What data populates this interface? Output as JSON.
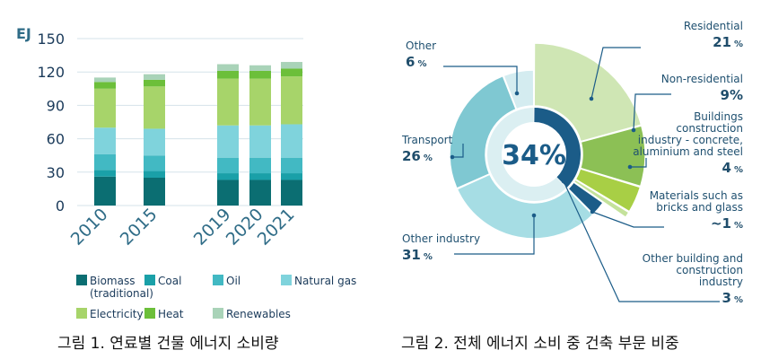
{
  "chart_data": [
    {
      "type": "bar",
      "stacked": true,
      "ylabel": "EJ",
      "ylim": [
        0,
        150
      ],
      "yticks": [
        0,
        30,
        60,
        90,
        120,
        150
      ],
      "grid": true,
      "legend_position": "bottom",
      "categories": [
        "2010",
        "2015",
        "2019",
        "2020",
        "2021"
      ],
      "series": [
        {
          "name": "Biomass (traditional)",
          "color": "#0b6e72",
          "values": [
            26,
            25,
            23,
            23,
            23
          ]
        },
        {
          "name": "Coal",
          "color": "#1aa0a8",
          "values": [
            6,
            6,
            6,
            6,
            6
          ]
        },
        {
          "name": "Oil",
          "color": "#42b9c3",
          "values": [
            14,
            14,
            14,
            14,
            14
          ]
        },
        {
          "name": "Natural gas",
          "color": "#7fd3dc",
          "values": [
            24,
            24,
            29,
            29,
            30
          ]
        },
        {
          "name": "Electricity",
          "color": "#a7d46a",
          "values": [
            35,
            38,
            42,
            42,
            43
          ]
        },
        {
          "name": "Heat",
          "color": "#6cbf3a",
          "values": [
            6,
            6,
            7,
            7,
            7
          ]
        },
        {
          "name": "Renewables",
          "color": "#a9d3b8",
          "values": [
            4,
            5,
            6,
            5,
            6
          ]
        }
      ]
    },
    {
      "type": "pie",
      "center_label": "34%",
      "slices": [
        {
          "name": "Residential",
          "pct_label": "21",
          "value": 21,
          "color": "#cfe6b4",
          "outer": true
        },
        {
          "name": "Non-residential",
          "pct_label": "9%",
          "value": 9,
          "color": "#8cc055",
          "outer": true
        },
        {
          "name": "Buildings construction industry - concrete, aluminium and steel",
          "pct_label": "4",
          "value": 4,
          "color": "#a8cf45",
          "outer": true
        },
        {
          "name": "Materials such as bricks and glass",
          "pct_label": "~1",
          "value": 1,
          "color": "#c4e29b",
          "outer": true
        },
        {
          "name": "Other building and construction industry",
          "pct_label": "3",
          "value": 3,
          "color": "#1b5c88",
          "outer": false
        },
        {
          "name": "Other industry",
          "pct_label": "31",
          "value": 31,
          "color": "#a6dde4",
          "outer": false
        },
        {
          "name": "Transport",
          "pct_label": "26",
          "value": 26,
          "color": "#7fc8d2",
          "outer": false
        },
        {
          "name": "Other",
          "pct_label": "6",
          "value": 6,
          "color": "#d4ecf0",
          "outer": false
        }
      ]
    }
  ],
  "captions": {
    "left": "그림 1. 연료별 건물 에너지 소비량",
    "right": "그림 2. 전체 에너지 소비 중 건축 부문 비중"
  },
  "percent_sign": "%"
}
